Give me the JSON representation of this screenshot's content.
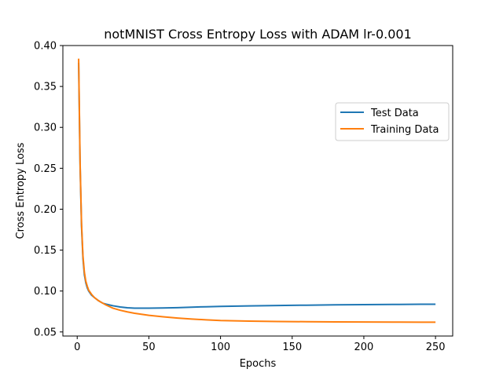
{
  "chart_data": {
    "type": "line",
    "title": "notMNIST Cross Entropy Loss with ADAM lr-0.001",
    "xlabel": "Epochs",
    "ylabel": "Cross Entropy Loss",
    "xlim": [
      -10,
      262
    ],
    "ylim": [
      0.045,
      0.4
    ],
    "xticks": [
      0,
      50,
      100,
      150,
      200,
      250
    ],
    "xtick_labels": [
      "0",
      "50",
      "100",
      "150",
      "200",
      "250"
    ],
    "yticks": [
      0.05,
      0.1,
      0.15,
      0.2,
      0.25,
      0.3,
      0.35,
      0.4
    ],
    "ytick_labels": [
      "0.05",
      "0.10",
      "0.15",
      "0.20",
      "0.25",
      "0.30",
      "0.35",
      "0.40"
    ],
    "grid": false,
    "legend_position": "upper right",
    "series": [
      {
        "name": "Test Data",
        "color": "#1f77b4",
        "x": [
          1,
          2,
          3,
          4,
          5,
          6,
          7,
          8,
          10,
          12,
          15,
          18,
          20,
          25,
          30,
          35,
          40,
          50,
          60,
          70,
          80,
          90,
          100,
          120,
          140,
          160,
          180,
          200,
          220,
          240,
          250
        ],
        "values": [
          0.379,
          0.255,
          0.18,
          0.14,
          0.12,
          0.11,
          0.104,
          0.1,
          0.095,
          0.092,
          0.088,
          0.085,
          0.084,
          0.082,
          0.0805,
          0.0795,
          0.079,
          0.079,
          0.0793,
          0.0797,
          0.0803,
          0.0808,
          0.0812,
          0.0818,
          0.0823,
          0.0827,
          0.0831,
          0.0834,
          0.0836,
          0.0838,
          0.0839
        ]
      },
      {
        "name": "Training Data",
        "color": "#ff7f0e",
        "x": [
          1,
          2,
          3,
          4,
          5,
          6,
          7,
          8,
          10,
          12,
          15,
          18,
          20,
          25,
          30,
          35,
          40,
          50,
          60,
          70,
          80,
          90,
          100,
          120,
          140,
          160,
          180,
          200,
          220,
          240,
          250
        ],
        "values": [
          0.384,
          0.258,
          0.183,
          0.143,
          0.123,
          0.112,
          0.106,
          0.101,
          0.096,
          0.092,
          0.088,
          0.085,
          0.083,
          0.079,
          0.0765,
          0.0745,
          0.0728,
          0.0703,
          0.0685,
          0.067,
          0.0658,
          0.0648,
          0.064,
          0.0632,
          0.0628,
          0.0625,
          0.0623,
          0.0621,
          0.062,
          0.0619,
          0.0619
        ]
      }
    ]
  }
}
